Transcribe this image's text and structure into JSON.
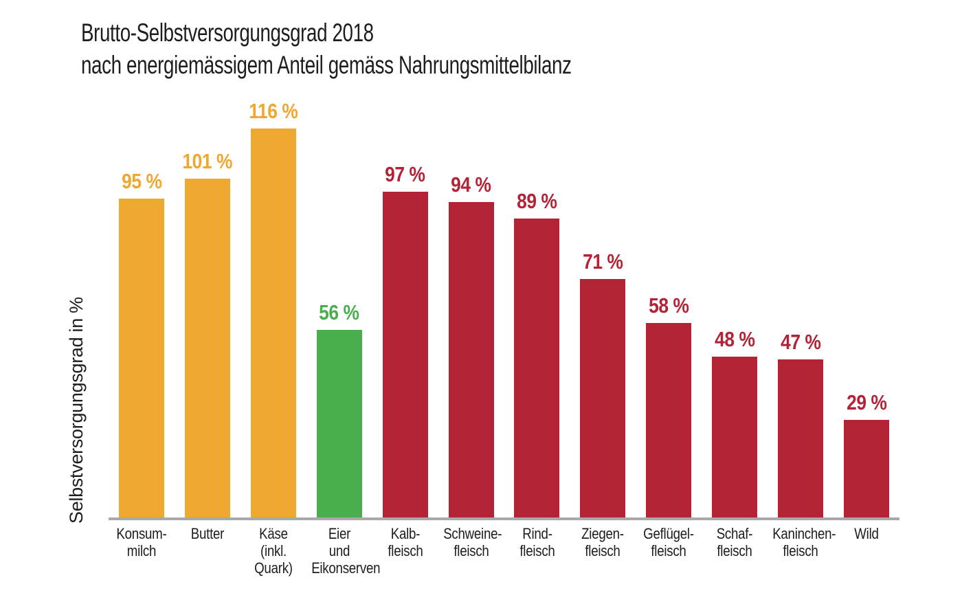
{
  "title": {
    "line1": "Brutto-Selbstversorgungsgrad 2018",
    "line2": "nach energiemässigem Anteil gemäss Nahrungsmittelbilanz"
  },
  "y_axis": {
    "label": "Selbstversorgungsgrad in %"
  },
  "colors": {
    "dairy_orange": "#EFA72F",
    "eggs_green": "#4BAE4E",
    "meat_red": "#B32336",
    "axis_line_gray": "#A9A9A9",
    "text_black": "#1D1D1B",
    "background": "#FFFFFF"
  },
  "chart_data": {
    "type": "bar",
    "title": "Brutto-Selbstversorgungsgrad 2018 nach energiemässigem Anteil gemäss Nahrungsmittelbilanz",
    "xlabel": "",
    "ylabel": "Selbstversorgungsgrad in %",
    "ylim": [
      0,
      120
    ],
    "grid": false,
    "legend": false,
    "categories": [
      "Konsum-\nmilch",
      "Butter",
      "Käse\n(inkl.\nQuark)",
      "Eier\nund\nEikonserven",
      "Kalb-\nfleisch",
      "Schweine-\nfleisch",
      "Rind-\nfleisch",
      "Ziegen-\nfleisch",
      "Geflügel-\nfleisch",
      "Schaf-\nfleisch",
      "Kaninchen-\nfleisch",
      "Wild"
    ],
    "values": [
      95,
      101,
      116,
      56,
      97,
      94,
      89,
      71,
      58,
      48,
      47,
      29
    ],
    "value_labels": [
      "95 %",
      "101 %",
      "116 %",
      "56 %",
      "97 %",
      "94 %",
      "89 %",
      "71 %",
      "58 %",
      "48 %",
      "47 %",
      "29 %"
    ],
    "bar_colors": [
      "#EFA72F",
      "#EFA72F",
      "#EFA72F",
      "#4BAE4E",
      "#B32336",
      "#B32336",
      "#B32336",
      "#B32336",
      "#B32336",
      "#B32336",
      "#B32336",
      "#B32336"
    ],
    "color_groups": [
      "dairy",
      "dairy",
      "dairy",
      "eggs",
      "meat",
      "meat",
      "meat",
      "meat",
      "meat",
      "meat",
      "meat",
      "meat"
    ]
  }
}
